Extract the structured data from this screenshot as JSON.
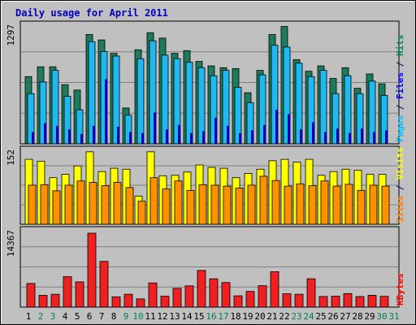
{
  "chart_data": {
    "type": "bar",
    "title": "Daily usage for April 2011",
    "categories": [
      "1",
      "2",
      "3",
      "4",
      "5",
      "6",
      "7",
      "8",
      "9",
      "10",
      "11",
      "12",
      "13",
      "14",
      "15",
      "16",
      "17",
      "18",
      "19",
      "20",
      "21",
      "22",
      "23",
      "24",
      "25",
      "26",
      "27",
      "28",
      "29",
      "30",
      "31"
    ],
    "weekend_days": [
      "2",
      "3",
      "9",
      "10",
      "16",
      "17",
      "23",
      "24",
      "30",
      "31"
    ],
    "panels": [
      {
        "id": "pages-files-hits",
        "ymax_label": "1297",
        "ymax": 1297,
        "right_label_parts": [
          {
            "text": "Pages",
            "color": "#00c0ff"
          },
          {
            "text": " / ",
            "color": "#000080"
          },
          {
            "text": "Files",
            "color": "#0000ff"
          },
          {
            "text": " / ",
            "color": "#000080"
          },
          {
            "text": "Hits",
            "color": "#008060"
          }
        ],
        "series": [
          {
            "name": "Hits",
            "color": "#1b7b5b",
            "values": [
              750,
              860,
              860,
              660,
              600,
              1220,
              1160,
              1010,
              400,
              1050,
              1240,
              1180,
              1010,
              1040,
              920,
              870,
              850,
              840,
              570,
              820,
              1220,
              1310,
              940,
              810,
              870,
              730,
              850,
              620,
              780,
              670
            ]
          },
          {
            "name": "Files",
            "color": "#20b8f0",
            "values": [
              560,
              690,
              820,
              530,
              380,
              1140,
              1030,
              980,
              320,
              950,
              1150,
              990,
              950,
              910,
              850,
              760,
              820,
              630,
              460,
              770,
              1100,
              1080,
              900,
              750,
              820,
              560,
              760,
              560,
              700,
              540
            ]
          },
          {
            "name": "Pages",
            "color": "#0000c0",
            "values": [
              130,
              230,
              200,
              160,
              110,
              200,
              720,
              190,
              130,
              120,
              350,
              160,
              210,
              120,
              140,
              290,
              200,
              120,
              150,
              210,
              380,
              330,
              160,
              240,
              130,
              170,
              120,
              170,
              130,
              150
            ]
          }
        ]
      },
      {
        "id": "visits-sites",
        "ymax_label": "152",
        "ymax": 152,
        "right_label_parts": [
          {
            "text": "Sites",
            "color": "#ff8000"
          },
          {
            "text": " / ",
            "color": "#000080"
          },
          {
            "text": "Visits",
            "color": "#ffff00"
          }
        ],
        "series": [
          {
            "name": "Visits",
            "color": "#ffff00",
            "values": [
              138,
              134,
              99,
              106,
              124,
              154,
              112,
              119,
              117,
              60,
              154,
              103,
              104,
              111,
              126,
              121,
              119,
              99,
              108,
              117,
              135,
              138,
              132,
              138,
              104,
              112,
              117,
              115,
              106,
              106
            ]
          },
          {
            "name": "Sites",
            "color": "#ff9000",
            "values": [
              83,
              84,
              71,
              83,
              92,
              89,
              82,
              89,
              78,
              49,
              99,
              75,
              92,
              72,
              84,
              83,
              81,
              77,
              83,
              102,
              93,
              81,
              86,
              82,
              92,
              81,
              85,
              72,
              83,
              81
            ]
          }
        ]
      },
      {
        "id": "kbytes",
        "ymax_label": "14367",
        "ymax": 14367,
        "right_label_parts": [
          {
            "text": "KBytes",
            "color": "#ff0000"
          }
        ],
        "series": [
          {
            "name": "KBytes",
            "color": "#f02020",
            "values": [
              4600,
              2290,
              2500,
              5920,
              4900,
              14367,
              8890,
              2000,
              2500,
              1600,
              4700,
              2130,
              3650,
              4130,
              7130,
              5510,
              4790,
              2200,
              3060,
              4160,
              6880,
              2600,
              2500,
              5510,
              2070,
              2130,
              2630,
              2050,
              2300,
              2100
            ]
          }
        ]
      }
    ]
  }
}
